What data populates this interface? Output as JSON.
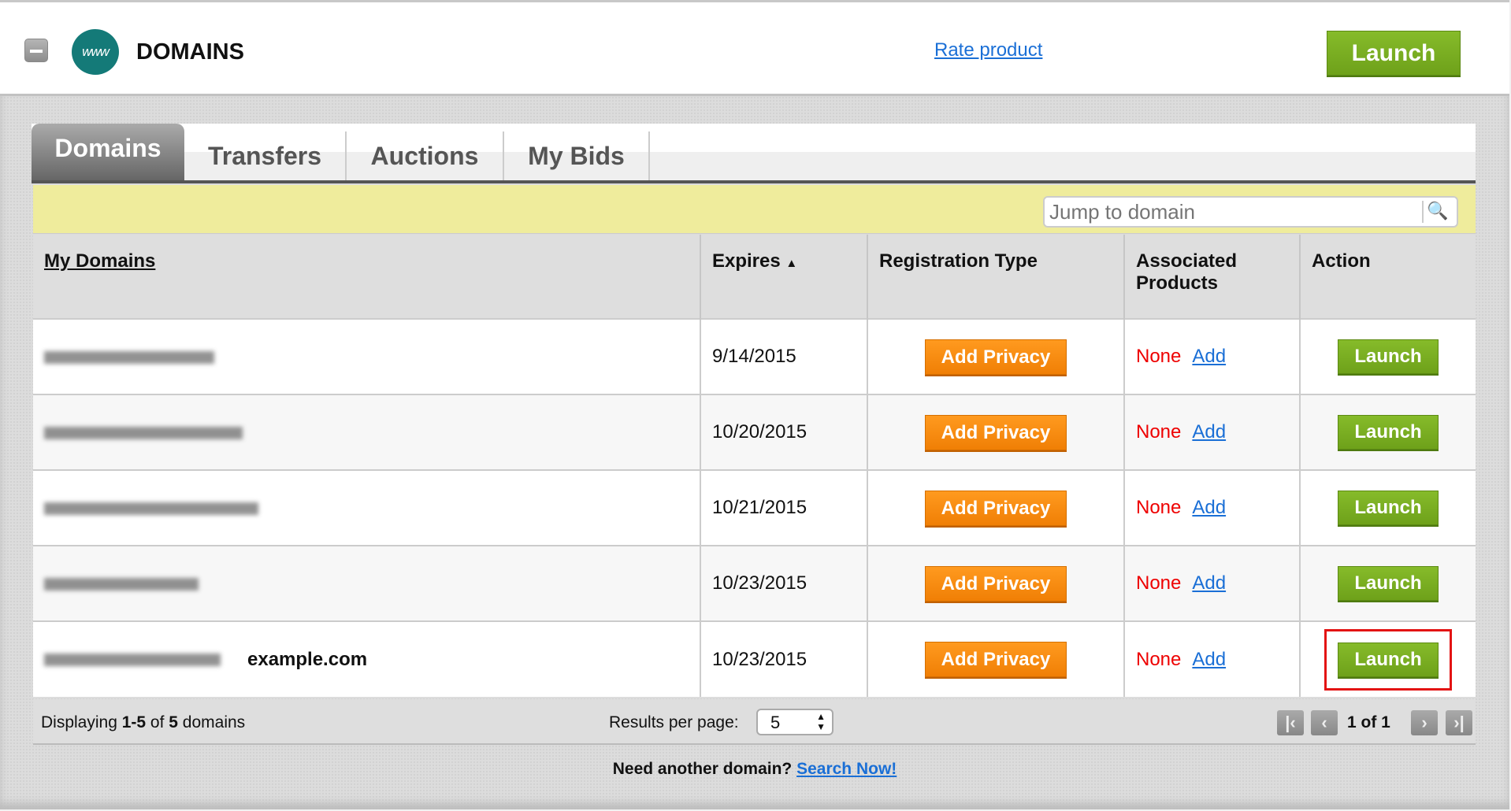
{
  "header": {
    "title": "DOMAINS",
    "logo_text": "www",
    "rate_link": "Rate product",
    "launch": "Launch"
  },
  "tabs": [
    {
      "label": "Domains",
      "active": true
    },
    {
      "label": "Transfers"
    },
    {
      "label": "Auctions"
    },
    {
      "label": "My Bids"
    }
  ],
  "search": {
    "placeholder": "Jump to domain",
    "icon": "search-icon"
  },
  "table": {
    "headers": [
      "My Domains",
      "Expires",
      "Registration Type",
      "Associated Products",
      "Action"
    ],
    "sort_indicator": "▲",
    "rows": [
      {
        "expires": "9/14/2015",
        "reg": "Add Privacy",
        "assoc": "None",
        "assoc_link": "Add",
        "action": "Launch",
        "label": ""
      },
      {
        "expires": "10/20/2015",
        "reg": "Add Privacy",
        "assoc": "None",
        "assoc_link": "Add",
        "action": "Launch",
        "label": ""
      },
      {
        "expires": "10/21/2015",
        "reg": "Add Privacy",
        "assoc": "None",
        "assoc_link": "Add",
        "action": "Launch",
        "label": ""
      },
      {
        "expires": "10/23/2015",
        "reg": "Add Privacy",
        "assoc": "None",
        "assoc_link": "Add",
        "action": "Launch",
        "label": ""
      },
      {
        "expires": "10/23/2015",
        "reg": "Add Privacy",
        "assoc": "None",
        "assoc_link": "Add",
        "action": "Launch",
        "label": "example.com",
        "highlighted": true
      }
    ]
  },
  "footer": {
    "displaying_prefix": "Displaying ",
    "range": "1-5",
    "of": " of ",
    "total": "5",
    "suffix": " domains",
    "results_per_page_label": "Results per page:",
    "results_per_page": "5",
    "page": "1 of 1"
  },
  "bottom": {
    "text": "Need another domain? ",
    "link": "Search Now!"
  },
  "colors": {
    "launch_green": "#78b021",
    "privacy_orange": "#f68b0f",
    "highlight_red": "#e31313",
    "none_red": "#e00000"
  }
}
